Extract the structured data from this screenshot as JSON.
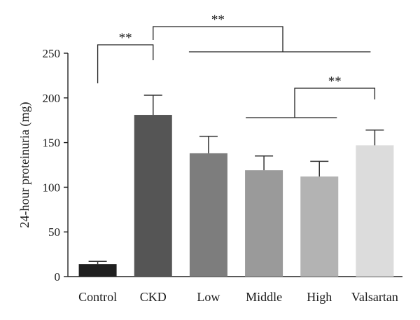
{
  "chart_data": {
    "type": "bar",
    "title": "",
    "xlabel": "",
    "ylabel": "24-hour proteinuria (mg)",
    "ylim": [
      0,
      250
    ],
    "yticks": [
      0,
      50,
      100,
      150,
      200,
      250
    ],
    "categories": [
      "Control",
      "CKD",
      "Low",
      "Middle",
      "High",
      "Valsartan"
    ],
    "values": [
      14,
      181,
      138,
      119,
      112,
      147
    ],
    "errors": [
      3,
      22,
      19,
      16,
      17,
      17
    ],
    "bar_colors": [
      "#1f1f1f",
      "#555555",
      "#7d7d7d",
      "#9a9a9a",
      "#b3b3b3",
      "#dcdcdc"
    ],
    "grid": false,
    "significance": [
      {
        "label": "**",
        "type": "Control vs CKD"
      },
      {
        "label": "**",
        "type": "CKD vs Low/Middle/High/Valsartan"
      },
      {
        "label": "**",
        "type": "Middle/High vs Valsartan"
      }
    ]
  }
}
